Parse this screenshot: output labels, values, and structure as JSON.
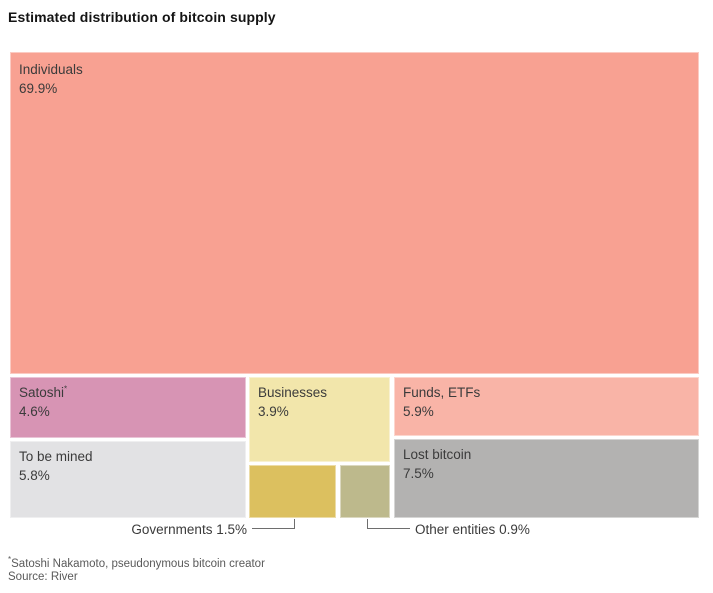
{
  "title": "Estimated distribution of bitcoin supply",
  "chart_data": {
    "type": "treemap",
    "title": "Estimated distribution of bitcoin supply",
    "value_unit": "%",
    "legend": "none",
    "items": [
      {
        "label": "Individuals",
        "value": 69.9,
        "pct": "69.9%",
        "color": "#f8a192",
        "label_position": "inside"
      },
      {
        "label": "Satoshi",
        "note_mark": "*",
        "value": 4.6,
        "pct": "4.6%",
        "color": "#d794b4",
        "label_position": "inside"
      },
      {
        "label": "To be mined",
        "value": 5.8,
        "pct": "5.8%",
        "color": "#e2e2e4",
        "label_position": "inside"
      },
      {
        "label": "Businesses",
        "value": 3.9,
        "pct": "3.9%",
        "color": "#f2e6ab",
        "label_position": "inside"
      },
      {
        "label": "Funds, ETFs",
        "value": 5.9,
        "pct": "5.9%",
        "color": "#f9b4a7",
        "label_position": "inside"
      },
      {
        "label": "Lost bitcoin",
        "value": 7.5,
        "pct": "7.5%",
        "color": "#b3b2b1",
        "label_position": "inside"
      },
      {
        "label": "Governments",
        "value": 1.5,
        "pct": "1.5%",
        "color": "#dcc05f",
        "label_position": "outside"
      },
      {
        "label": "Other entities",
        "value": 0.9,
        "pct": "0.9%",
        "color": "#bdb98c",
        "label_position": "outside"
      }
    ]
  },
  "footnote": {
    "mark": "*",
    "text": "Satoshi Nakamoto, pseudonymous bitcoin creator"
  },
  "source": "Source: River"
}
